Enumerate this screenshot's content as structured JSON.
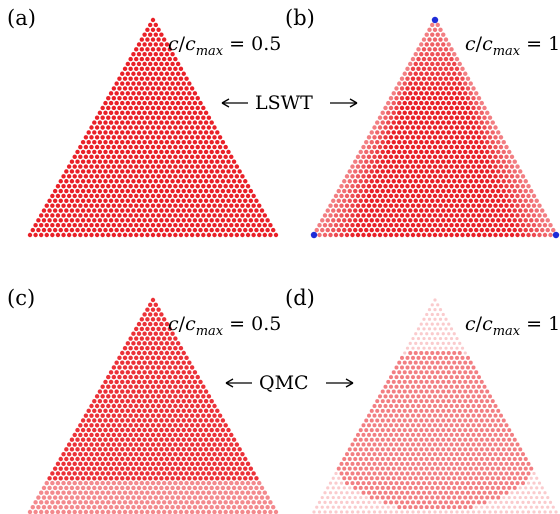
{
  "panels": [
    {
      "id": "a",
      "label": "(a)",
      "ratio_value": "0.5",
      "density": 0.95,
      "corner_excess": false
    },
    {
      "id": "b",
      "label": "(b)",
      "ratio_value": "1",
      "density": 0.85,
      "corner_excess": true
    },
    {
      "id": "c",
      "label": "(c)",
      "ratio_value": "0.5",
      "density": 0.88,
      "corner_excess": false
    },
    {
      "id": "d",
      "label": "(d)",
      "ratio_value": "1",
      "density": 0.45,
      "corner_excess": false
    }
  ],
  "ratio_text": {
    "c": "c",
    "slash": "/",
    "c2": "c",
    "sub": "max",
    "eq": " = "
  },
  "methods": {
    "top": "LSWT",
    "bottom": "QMC"
  },
  "colors": {
    "particle": "#e8141c",
    "corner": "#1e2cd8",
    "background": "#ffffff"
  }
}
